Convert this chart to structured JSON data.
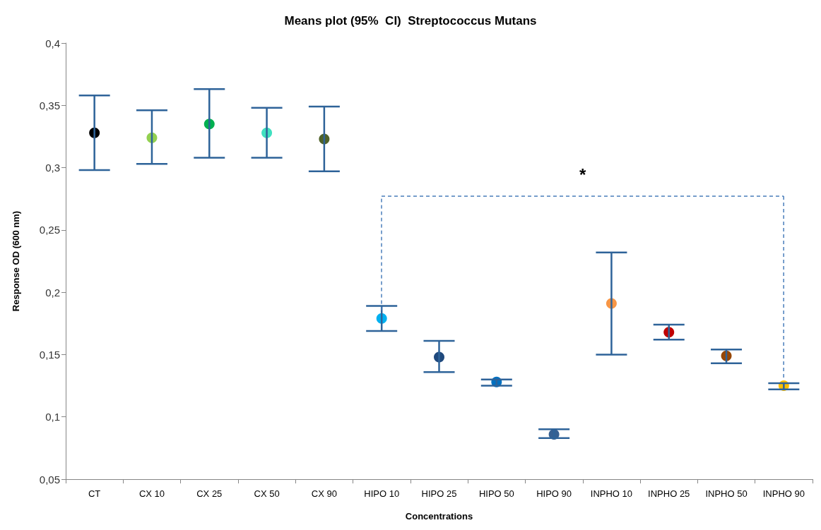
{
  "chart_data": {
    "type": "scatter",
    "title": "Means plot (95%  CI)  Streptococcus Mutans",
    "xlabel": "Concentrations",
    "ylabel": "Response OD (600 nm)",
    "categories": [
      "CT",
      "CX 10",
      "CX 25",
      "CX 50",
      "CX 90",
      "HIPO 10",
      "HIPO 25",
      "HIPO 50",
      "HIPO 90",
      "INPHO 10",
      "INPHO 25",
      "INPHO 50",
      "INPHO 90"
    ],
    "values": [
      0.328,
      0.324,
      0.335,
      0.328,
      0.323,
      0.179,
      0.148,
      0.128,
      0.086,
      0.191,
      0.168,
      0.149,
      0.125
    ],
    "errors": [
      [
        0.298,
        0.358
      ],
      [
        0.303,
        0.346
      ],
      [
        0.308,
        0.363
      ],
      [
        0.308,
        0.348
      ],
      [
        0.297,
        0.349
      ],
      [
        0.169,
        0.189
      ],
      [
        0.136,
        0.161
      ],
      [
        0.125,
        0.13
      ],
      [
        0.083,
        0.09
      ],
      [
        0.15,
        0.232
      ],
      [
        0.162,
        0.174
      ],
      [
        0.143,
        0.154
      ],
      [
        0.122,
        0.127
      ]
    ],
    "colors": [
      "#000000",
      "#92d050",
      "#00b050",
      "#40e0c0",
      "#4f6228",
      "#00b0f0",
      "#1f497d",
      "#0070c0",
      "#366092",
      "#f79646",
      "#c00000",
      "#974706",
      "#ffc000"
    ],
    "ylim": [
      0.05,
      0.4
    ],
    "yticks": [
      {
        "value": 0.05,
        "label": "0,05"
      },
      {
        "value": 0.1,
        "label": "0,1"
      },
      {
        "value": 0.15,
        "label": "0,15"
      },
      {
        "value": 0.2,
        "label": "0,2"
      },
      {
        "value": 0.25,
        "label": "0,25"
      },
      {
        "value": 0.3,
        "label": "0,3"
      },
      {
        "value": 0.35,
        "label": "0,35"
      },
      {
        "value": 0.4,
        "label": "0,4"
      }
    ],
    "marker": "circle",
    "grid": false,
    "annotations": [
      "*"
    ]
  }
}
